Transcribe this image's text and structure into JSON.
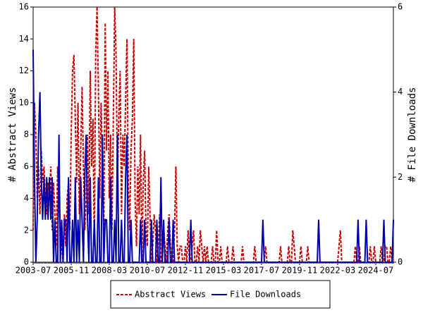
{
  "chart_data": {
    "type": "line",
    "y_label": "# Abstract Views",
    "y2_label": "# File Downloads",
    "categories": [
      "2003-07",
      null,
      null,
      null,
      null,
      null,
      null,
      null,
      null,
      null,
      null,
      null,
      null,
      null,
      null,
      null,
      null,
      null,
      null,
      null,
      null,
      null,
      null,
      null,
      null,
      null,
      null,
      null,
      "2005-11",
      null,
      null,
      null,
      null,
      null,
      null,
      null,
      null,
      null,
      null,
      null,
      null,
      null,
      null,
      null,
      null,
      null,
      null,
      null,
      null,
      null,
      null,
      null,
      null,
      null,
      null,
      null,
      "2008-03",
      null,
      null,
      null,
      null,
      null,
      null,
      null,
      null,
      null,
      null,
      null,
      null,
      null,
      null,
      null,
      null,
      null,
      null,
      null,
      null,
      null,
      null,
      null,
      null,
      null,
      null,
      null,
      "2010-07",
      null,
      null,
      null,
      null,
      null,
      null,
      null,
      null,
      null,
      null,
      null,
      null,
      null,
      null,
      null,
      null,
      null,
      null,
      null,
      null,
      null,
      null,
      null,
      null,
      null,
      null,
      null,
      "2012-11",
      null,
      null,
      null,
      null,
      null,
      null,
      null,
      null,
      null,
      null,
      null,
      null,
      null,
      null,
      null,
      null,
      null,
      null,
      null,
      null,
      null,
      null,
      null,
      null,
      null,
      null,
      null,
      "2015-03",
      null,
      null,
      null,
      null,
      null,
      null,
      null,
      null,
      null,
      null,
      null,
      null,
      null,
      null,
      null,
      null,
      null,
      null,
      null,
      null,
      null,
      null,
      null,
      null,
      null,
      null,
      null,
      "2017-07",
      null,
      null,
      null,
      null,
      null,
      null,
      null,
      null,
      null,
      null,
      null,
      null,
      null,
      null,
      null,
      null,
      null,
      null,
      null,
      null,
      null,
      null,
      null,
      null,
      null,
      null,
      null,
      "2019-11",
      null,
      null,
      null,
      null,
      null,
      null,
      null,
      null,
      null,
      null,
      null,
      null,
      null,
      null,
      null,
      null,
      null,
      null,
      null,
      null,
      null,
      null,
      null,
      null,
      null,
      null,
      null,
      "2022-03",
      null,
      null,
      null,
      null,
      null,
      null,
      null,
      null,
      null,
      null,
      null,
      null,
      null,
      null,
      null,
      null,
      null,
      null,
      null,
      null,
      null,
      null,
      null,
      null,
      null,
      null,
      null,
      "2024-07",
      null,
      null,
      null,
      null,
      null,
      null,
      null,
      null,
      null,
      null,
      null,
      null,
      null
    ],
    "series": [
      {
        "name": "Abstract Views",
        "color": "#cc0000",
        "dashed": true,
        "values": [
          2,
          10,
          8,
          4,
          6,
          3,
          7,
          5,
          6,
          4,
          3,
          5,
          4,
          6,
          2,
          5,
          3,
          1,
          6,
          4,
          2,
          1,
          0,
          3,
          1,
          4,
          5,
          2,
          8,
          12,
          13,
          9,
          5,
          10,
          3,
          7,
          11,
          6,
          2,
          4,
          8,
          3,
          12,
          6,
          9,
          1,
          13,
          16,
          11,
          4,
          10,
          6,
          2,
          15,
          7,
          12,
          4,
          8,
          2,
          9,
          16,
          13,
          5,
          9,
          12,
          3,
          8,
          6,
          10,
          14,
          5,
          2,
          7,
          9,
          14,
          4,
          1,
          6,
          3,
          8,
          0,
          5,
          7,
          2,
          1,
          6,
          3,
          0,
          1,
          3,
          2,
          0,
          1,
          3,
          0,
          0,
          2,
          1,
          0,
          2,
          3,
          1,
          0,
          0,
          2,
          6,
          1,
          0,
          1,
          1,
          0,
          0,
          1,
          0,
          2,
          0,
          0,
          1,
          2,
          0,
          0,
          1,
          0,
          2,
          1,
          0,
          1,
          0,
          1,
          0,
          0,
          0,
          1,
          0,
          0,
          2,
          0,
          0,
          1,
          0,
          0,
          0,
          0,
          1,
          0,
          0,
          0,
          1,
          0,
          0,
          0,
          0,
          0,
          0,
          1,
          0,
          0,
          0,
          0,
          0,
          0,
          0,
          0,
          1,
          0,
          0,
          0,
          0,
          0,
          0,
          0,
          1,
          0,
          0,
          0,
          0,
          0,
          0,
          0,
          0,
          0,
          0,
          1,
          0,
          0,
          0,
          0,
          0,
          1,
          0,
          0,
          2,
          1,
          0,
          0,
          0,
          0,
          1,
          0,
          0,
          0,
          0,
          1,
          0,
          0,
          0,
          0,
          0,
          0,
          0,
          0,
          0,
          0,
          0,
          0,
          0,
          0,
          0,
          0,
          0,
          0,
          0,
          0,
          0,
          0,
          1,
          2,
          0,
          0,
          0,
          0,
          0,
          0,
          0,
          0,
          0,
          0,
          1,
          0,
          0,
          1,
          0,
          0,
          0,
          0,
          0,
          0,
          0,
          1,
          0,
          0,
          1,
          0,
          0,
          0,
          0,
          1,
          0,
          0,
          1,
          1,
          0,
          0,
          1,
          0,
          0
        ]
      },
      {
        "name": "File Downloads",
        "color": "#0000aa",
        "axis": "y2",
        "values": [
          5,
          2,
          0,
          1,
          3,
          4,
          2,
          1,
          2,
          1,
          2,
          1,
          2,
          1,
          2,
          0,
          1,
          0,
          0,
          3,
          0,
          1,
          0,
          1,
          1,
          0,
          2,
          0,
          0,
          1,
          0,
          2,
          0,
          1,
          0,
          2,
          1,
          0,
          2,
          3,
          1,
          0,
          2,
          0,
          0,
          1,
          0,
          0,
          2,
          0,
          0,
          3,
          0,
          1,
          1,
          0,
          0,
          2,
          0,
          0,
          1,
          0,
          3,
          0,
          0,
          1,
          0,
          0,
          2,
          3,
          0,
          0,
          1,
          0,
          0,
          0,
          0,
          0,
          0,
          1,
          0,
          0,
          1,
          0,
          0,
          0,
          0,
          1,
          0,
          0,
          0,
          1,
          0,
          0,
          2,
          0,
          1,
          0,
          0,
          0,
          1,
          0,
          0,
          1,
          0,
          0,
          0,
          0,
          0,
          0,
          0,
          0,
          0,
          0,
          0,
          0,
          1,
          0,
          0,
          0,
          0,
          0,
          0,
          0,
          0,
          0,
          0,
          0,
          0,
          0,
          0,
          0,
          0,
          0,
          0,
          0,
          0,
          0,
          0,
          0,
          0,
          0,
          0,
          0,
          0,
          0,
          0,
          0,
          0,
          0,
          0,
          0,
          0,
          0,
          0,
          0,
          0,
          0,
          0,
          0,
          0,
          0,
          0,
          0,
          0,
          0,
          0,
          0,
          0,
          1,
          0,
          0,
          0,
          0,
          0,
          0,
          0,
          0,
          0,
          0,
          0,
          0,
          0,
          0,
          0,
          0,
          0,
          0,
          0,
          0,
          0,
          0,
          0,
          0,
          0,
          0,
          0,
          0,
          0,
          0,
          0,
          0,
          0,
          0,
          0,
          0,
          0,
          0,
          0,
          0,
          1,
          0,
          0,
          0,
          0,
          0,
          0,
          0,
          0,
          0,
          0,
          0,
          0,
          0,
          0,
          0,
          0,
          0,
          0,
          0,
          0,
          0,
          0,
          0,
          0,
          0,
          0,
          0,
          0,
          1,
          0,
          0,
          0,
          0,
          0,
          1,
          0,
          0,
          0,
          0,
          0,
          0,
          0,
          0,
          0,
          0,
          0,
          0,
          1,
          0,
          0,
          0,
          0,
          0,
          0,
          1
        ]
      }
    ],
    "ylim": [
      0,
      16
    ],
    "yticks": [
      0,
      2,
      4,
      6,
      8,
      10,
      12,
      14,
      16
    ],
    "y2lim": [
      0,
      6
    ],
    "y2ticks": [
      0,
      2,
      4,
      6
    ],
    "legend": "bottom"
  }
}
